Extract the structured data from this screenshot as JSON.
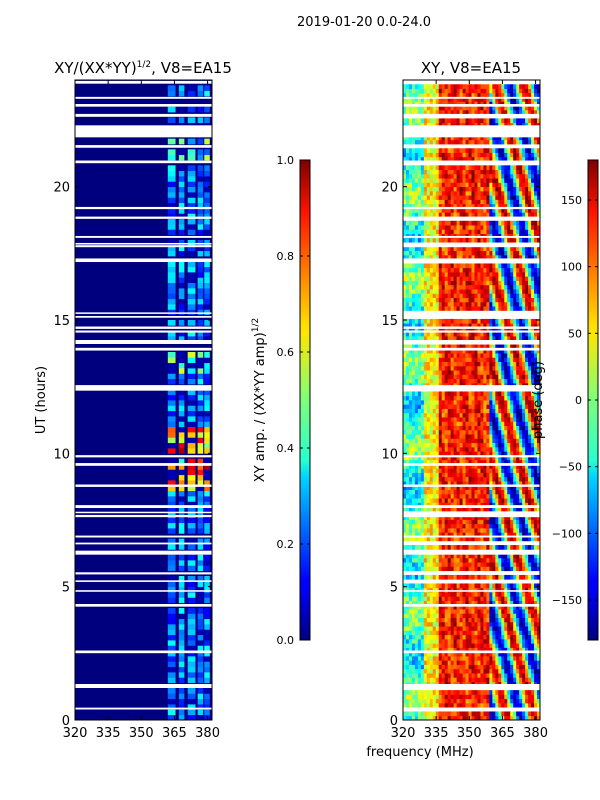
{
  "figure": {
    "suptitle": "2019-01-20 0.0-24.0",
    "shared_xlabel": "frequency (MHz)"
  },
  "chart_data": [
    {
      "type": "heatmap",
      "title": "XY/(XX*YY)^{1/2}, V8=EA15",
      "title_main": "XY/(XX*YY)",
      "title_sup": "1/2",
      "title_tail": ", V8=EA15",
      "xlabel": "frequency (MHz)",
      "ylabel": "UT (hours)",
      "xlim": [
        320,
        382
      ],
      "ylim": [
        0,
        24
      ],
      "xticks": [
        320,
        335,
        350,
        365,
        380
      ],
      "yticks": [
        0,
        5,
        10,
        15,
        20
      ],
      "colorbar": {
        "label": "XY amp. / (XX*YY amp)^{1/2}",
        "label_main": "XY amp. / (XX*YY amp)",
        "label_sup": "1/2",
        "range": [
          0.0,
          1.0
        ],
        "ticks": [
          "0.0",
          "0.2",
          "0.4",
          "0.6",
          "0.8",
          "1.0"
        ],
        "colormap": "jet"
      }
    },
    {
      "type": "heatmap",
      "title": "XY, V8=EA15",
      "xlabel": "frequency (MHz)",
      "ylabel": "",
      "xlim": [
        320,
        382
      ],
      "ylim": [
        0,
        24
      ],
      "xticks": [
        320,
        335,
        350,
        365,
        380
      ],
      "yticks": [
        0,
        5,
        10,
        15,
        20
      ],
      "colorbar": {
        "label": "phase (deg)",
        "range": [
          -180,
          180
        ],
        "ticks": [
          "−150",
          "−100",
          "−50",
          "0",
          "50",
          "100",
          "150"
        ],
        "tick_values": [
          -150,
          -100,
          -50,
          0,
          50,
          100,
          150
        ],
        "colormap": "jet"
      }
    }
  ]
}
